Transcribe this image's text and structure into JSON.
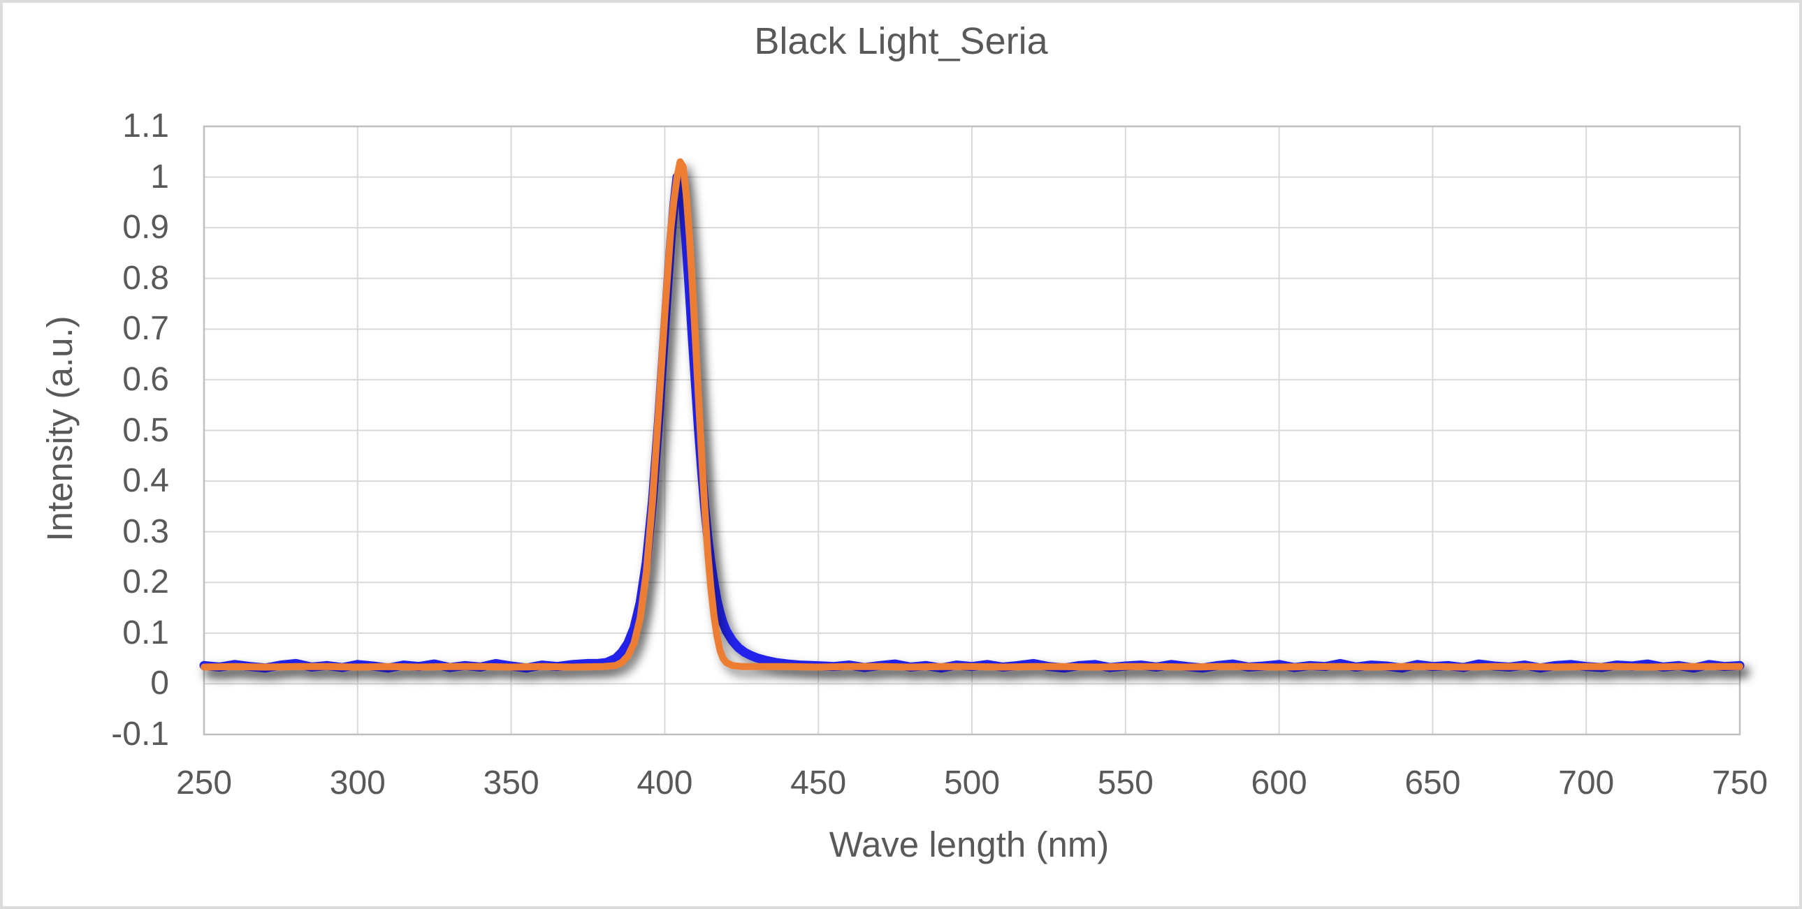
{
  "colors": {
    "text": "#595959",
    "gridline": "#d9d9d9",
    "plot_border": "#bfbfbf",
    "canvas_border": "#dcdcdc",
    "series_blue": "#2222ec",
    "series_orange": "#ed7d31"
  },
  "chart_data": {
    "type": "line",
    "title": "Black Light_Seria",
    "xlabel": "Wave length (nm)",
    "ylabel": "Intensity (a.u.)",
    "xlim": [
      250,
      750
    ],
    "ylim": [
      -0.1,
      1.1
    ],
    "x_ticks": [
      250,
      300,
      350,
      400,
      450,
      500,
      550,
      600,
      650,
      700,
      750
    ],
    "y_ticks": [
      1.1,
      1,
      0.9,
      0.8,
      0.7,
      0.6,
      0.5,
      0.4,
      0.3,
      0.2,
      0.1,
      0,
      -0.1
    ],
    "grid": true,
    "legend": "none",
    "peak_summary": {
      "blue_peak": {
        "x": 404,
        "y": 1.0
      },
      "orange_peak": {
        "x": 405,
        "y": 1.03
      },
      "baseline": 0.035
    },
    "series": [
      {
        "name": "blue",
        "color": "#2222ec",
        "stroke_width": 13,
        "points": [
          [
            250,
            0.036
          ],
          [
            255,
            0.033
          ],
          [
            260,
            0.038
          ],
          [
            265,
            0.034
          ],
          [
            270,
            0.031
          ],
          [
            275,
            0.037
          ],
          [
            280,
            0.04
          ],
          [
            285,
            0.033
          ],
          [
            290,
            0.036
          ],
          [
            295,
            0.032
          ],
          [
            300,
            0.038
          ],
          [
            305,
            0.035
          ],
          [
            310,
            0.031
          ],
          [
            315,
            0.037
          ],
          [
            320,
            0.034
          ],
          [
            325,
            0.039
          ],
          [
            330,
            0.032
          ],
          [
            335,
            0.036
          ],
          [
            340,
            0.033
          ],
          [
            345,
            0.04
          ],
          [
            350,
            0.035
          ],
          [
            355,
            0.031
          ],
          [
            360,
            0.037
          ],
          [
            365,
            0.034
          ],
          [
            370,
            0.038
          ],
          [
            375,
            0.04
          ],
          [
            378,
            0.04
          ],
          [
            381,
            0.042
          ],
          [
            384,
            0.05
          ],
          [
            386,
            0.062
          ],
          [
            388,
            0.08
          ],
          [
            390,
            0.11
          ],
          [
            392,
            0.16
          ],
          [
            394,
            0.24
          ],
          [
            396,
            0.36
          ],
          [
            398,
            0.52
          ],
          [
            400,
            0.7
          ],
          [
            401,
            0.79
          ],
          [
            402,
            0.875
          ],
          [
            403,
            0.945
          ],
          [
            404,
            1.0
          ],
          [
            405,
            0.985
          ],
          [
            406,
            0.94
          ],
          [
            407,
            0.865
          ],
          [
            408,
            0.775
          ],
          [
            409,
            0.68
          ],
          [
            410,
            0.59
          ],
          [
            411,
            0.5
          ],
          [
            412,
            0.42
          ],
          [
            413,
            0.35
          ],
          [
            414,
            0.29
          ],
          [
            415,
            0.24
          ],
          [
            416,
            0.2
          ],
          [
            417,
            0.165
          ],
          [
            418,
            0.14
          ],
          [
            419,
            0.12
          ],
          [
            420,
            0.105
          ],
          [
            422,
            0.085
          ],
          [
            424,
            0.071
          ],
          [
            426,
            0.062
          ],
          [
            428,
            0.056
          ],
          [
            430,
            0.051
          ],
          [
            433,
            0.046
          ],
          [
            436,
            0.042
          ],
          [
            440,
            0.039
          ],
          [
            444,
            0.037
          ],
          [
            448,
            0.036
          ],
          [
            452,
            0.035
          ],
          [
            455,
            0.034
          ],
          [
            460,
            0.037
          ],
          [
            465,
            0.032
          ],
          [
            470,
            0.036
          ],
          [
            475,
            0.039
          ],
          [
            480,
            0.033
          ],
          [
            485,
            0.036
          ],
          [
            490,
            0.031
          ],
          [
            495,
            0.037
          ],
          [
            500,
            0.034
          ],
          [
            505,
            0.038
          ],
          [
            510,
            0.033
          ],
          [
            515,
            0.036
          ],
          [
            520,
            0.04
          ],
          [
            525,
            0.034
          ],
          [
            530,
            0.031
          ],
          [
            535,
            0.036
          ],
          [
            540,
            0.038
          ],
          [
            545,
            0.032
          ],
          [
            550,
            0.035
          ],
          [
            555,
            0.037
          ],
          [
            560,
            0.033
          ],
          [
            565,
            0.038
          ],
          [
            570,
            0.034
          ],
          [
            575,
            0.031
          ],
          [
            580,
            0.036
          ],
          [
            585,
            0.039
          ],
          [
            590,
            0.033
          ],
          [
            595,
            0.035
          ],
          [
            600,
            0.038
          ],
          [
            605,
            0.032
          ],
          [
            610,
            0.036
          ],
          [
            615,
            0.034
          ],
          [
            620,
            0.04
          ],
          [
            625,
            0.033
          ],
          [
            630,
            0.037
          ],
          [
            635,
            0.035
          ],
          [
            640,
            0.031
          ],
          [
            645,
            0.038
          ],
          [
            650,
            0.034
          ],
          [
            655,
            0.036
          ],
          [
            660,
            0.032
          ],
          [
            665,
            0.039
          ],
          [
            670,
            0.035
          ],
          [
            675,
            0.033
          ],
          [
            680,
            0.037
          ],
          [
            685,
            0.031
          ],
          [
            690,
            0.036
          ],
          [
            695,
            0.038
          ],
          [
            700,
            0.034
          ],
          [
            705,
            0.032
          ],
          [
            710,
            0.037
          ],
          [
            715,
            0.035
          ],
          [
            720,
            0.039
          ],
          [
            725,
            0.033
          ],
          [
            730,
            0.036
          ],
          [
            735,
            0.031
          ],
          [
            740,
            0.038
          ],
          [
            745,
            0.034
          ],
          [
            750,
            0.036
          ]
        ]
      },
      {
        "name": "orange",
        "color": "#ed7d31",
        "stroke_width": 10,
        "points": [
          [
            250,
            0.033
          ],
          [
            260,
            0.034
          ],
          [
            270,
            0.033
          ],
          [
            280,
            0.034
          ],
          [
            290,
            0.034
          ],
          [
            300,
            0.033
          ],
          [
            310,
            0.034
          ],
          [
            320,
            0.033
          ],
          [
            330,
            0.034
          ],
          [
            340,
            0.034
          ],
          [
            350,
            0.033
          ],
          [
            360,
            0.034
          ],
          [
            370,
            0.033
          ],
          [
            380,
            0.034
          ],
          [
            384,
            0.036
          ],
          [
            386,
            0.042
          ],
          [
            388,
            0.055
          ],
          [
            390,
            0.08
          ],
          [
            392,
            0.13
          ],
          [
            394,
            0.22
          ],
          [
            396,
            0.36
          ],
          [
            398,
            0.54
          ],
          [
            400,
            0.73
          ],
          [
            402,
            0.9
          ],
          [
            403,
            0.955
          ],
          [
            404,
            1.0
          ],
          [
            405,
            1.03
          ],
          [
            406,
            1.02
          ],
          [
            407,
            0.965
          ],
          [
            408,
            0.885
          ],
          [
            409,
            0.785
          ],
          [
            410,
            0.675
          ],
          [
            411,
            0.56
          ],
          [
            412,
            0.45
          ],
          [
            413,
            0.35
          ],
          [
            414,
            0.26
          ],
          [
            415,
            0.19
          ],
          [
            416,
            0.135
          ],
          [
            417,
            0.095
          ],
          [
            418,
            0.066
          ],
          [
            419,
            0.05
          ],
          [
            420,
            0.042
          ],
          [
            422,
            0.036
          ],
          [
            425,
            0.034
          ],
          [
            430,
            0.034
          ],
          [
            440,
            0.034
          ],
          [
            450,
            0.033
          ],
          [
            460,
            0.034
          ],
          [
            470,
            0.034
          ],
          [
            480,
            0.033
          ],
          [
            490,
            0.034
          ],
          [
            500,
            0.034
          ],
          [
            510,
            0.033
          ],
          [
            520,
            0.034
          ],
          [
            530,
            0.034
          ],
          [
            540,
            0.033
          ],
          [
            550,
            0.034
          ],
          [
            560,
            0.034
          ],
          [
            570,
            0.033
          ],
          [
            580,
            0.034
          ],
          [
            590,
            0.034
          ],
          [
            600,
            0.033
          ],
          [
            610,
            0.034
          ],
          [
            620,
            0.034
          ],
          [
            630,
            0.033
          ],
          [
            640,
            0.034
          ],
          [
            650,
            0.034
          ],
          [
            660,
            0.033
          ],
          [
            670,
            0.034
          ],
          [
            680,
            0.034
          ],
          [
            690,
            0.033
          ],
          [
            700,
            0.034
          ],
          [
            710,
            0.034
          ],
          [
            720,
            0.033
          ],
          [
            730,
            0.034
          ],
          [
            740,
            0.034
          ],
          [
            750,
            0.034
          ]
        ]
      }
    ]
  }
}
